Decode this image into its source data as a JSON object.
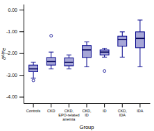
{
  "chart_data": {
    "type": "box",
    "categories": [
      "Controls",
      "CKD",
      "CKD,\nEPO-related\nanemia",
      "CKD,\nID",
      "ID",
      "CKD,\nIDA",
      "IDA"
    ],
    "boxes": [
      {
        "q1": -2.85,
        "median": -2.72,
        "q3": -2.55,
        "whislo": -3.15,
        "whishi": -2.42,
        "fliers": [
          -3.25
        ]
      },
      {
        "q1": -2.55,
        "median": -2.38,
        "q3": -2.2,
        "whislo": -2.72,
        "whishi": -1.95,
        "fliers": [
          -1.2
        ]
      },
      {
        "q1": -2.58,
        "median": -2.42,
        "q3": -2.22,
        "whislo": -2.72,
        "whishi": -2.08,
        "fliers": []
      },
      {
        "q1": -2.2,
        "median": -1.85,
        "q3": -1.65,
        "whislo": -2.62,
        "whishi": -1.48,
        "fliers": []
      },
      {
        "q1": -2.08,
        "median": -1.95,
        "q3": -1.85,
        "whislo": -2.18,
        "whishi": -1.78,
        "fliers": [
          -2.82
        ]
      },
      {
        "q1": -1.68,
        "median": -1.38,
        "q3": -1.22,
        "whislo": -2.18,
        "whishi": -1.02,
        "fliers": []
      },
      {
        "q1": -1.75,
        "median": -1.32,
        "q3": -1.02,
        "whislo": -2.62,
        "whishi": -0.48,
        "fliers": []
      }
    ],
    "color": "#00008B",
    "ylabel": "δ⁶ᴵFe",
    "xlabel": "Group",
    "ylim": [
      -4.3,
      0.25
    ],
    "yticks": [
      {
        "value": 0.0,
        "label": "0.00"
      },
      {
        "value": -1.0,
        "label": "-1.00"
      },
      {
        "value": -2.0,
        "label": "-2.00"
      },
      {
        "value": -3.0,
        "label": "-3.00"
      },
      {
        "value": -4.0,
        "label": "-4.00"
      }
    ],
    "grid": false
  }
}
